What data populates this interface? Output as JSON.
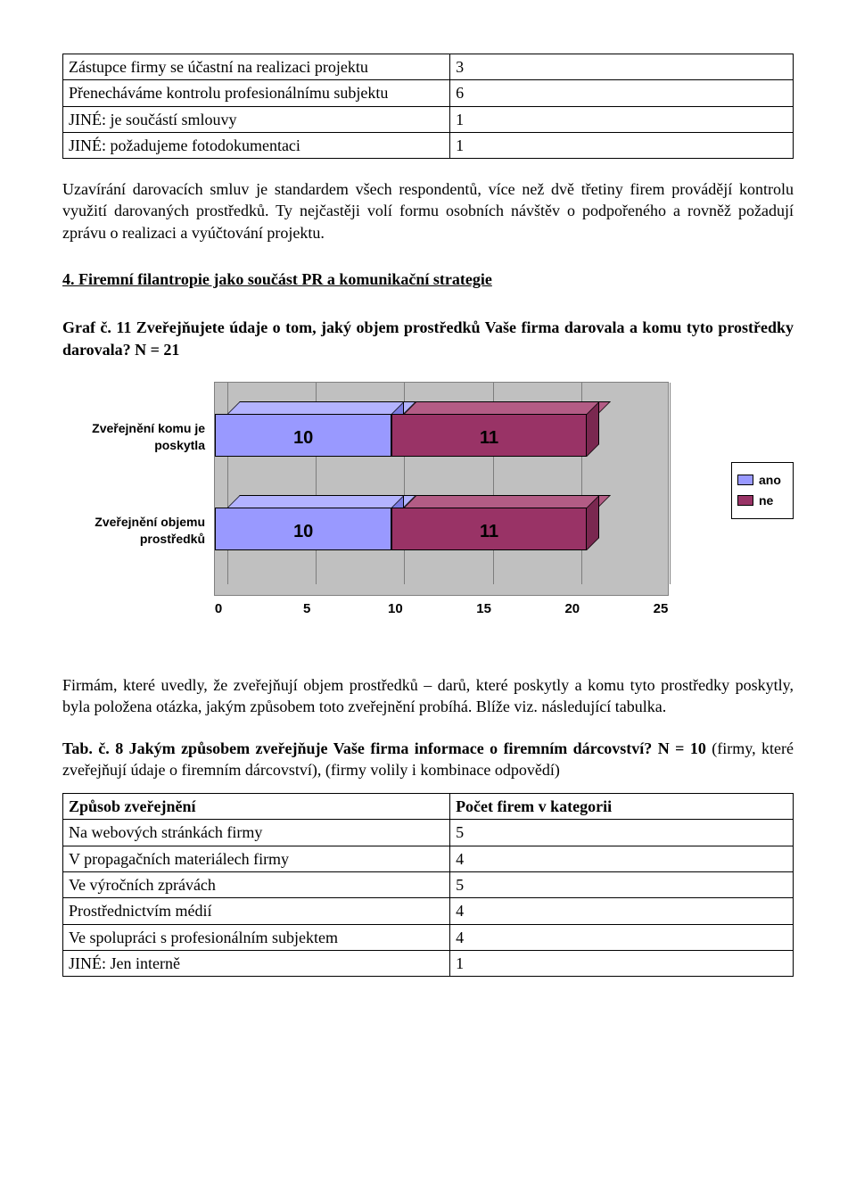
{
  "table1": {
    "rows": [
      {
        "label": "Zástupce firmy se účastní na realizaci projektu",
        "count": "3"
      },
      {
        "label": "Přenecháváme kontrolu profesionálnímu subjektu",
        "count": "6"
      },
      {
        "label": "JINÉ: je součástí smlouvy",
        "count": "1"
      },
      {
        "label": "JINÉ: požadujeme fotodokumentaci",
        "count": "1"
      }
    ]
  },
  "paragraph1": "Uzavírání darovacích smluv je standardem všech respondentů, více než dvě třetiny firem provádějí kontrolu využití darovaných prostředků. Ty nejčastěji volí formu osobních návštěv o podpořeného a rovněž požadují zprávu o realizaci a vyúčtování projektu.",
  "section_title": "4. Firemní filantropie jako součást PR a komunikační strategie",
  "graf_title": "Graf č. 11 Zveřejňujete údaje o tom, jaký objem prostředků Vaše firma darovala a komu tyto prostředky darovala? N = 21",
  "chart": {
    "type": "stacked-bar-horizontal",
    "background": "#c0c0c0",
    "grid_color": "#7d7d7d",
    "xlim": [
      0,
      25
    ],
    "xticks": [
      0,
      5,
      10,
      15,
      20,
      25
    ],
    "colors": {
      "ano": "#9999ff",
      "ne": "#993366"
    },
    "top_shade": {
      "ano": "#b3b3ff",
      "ne": "#b35c85"
    },
    "side_shade": {
      "ano": "#7a7ae0",
      "ne": "#7a2850"
    },
    "categories": [
      {
        "label": "Zveřejnění komu je poskytla",
        "ano": 10,
        "ne": 11
      },
      {
        "label": "Zveřejnění objemu prostředků",
        "ano": 10,
        "ne": 11
      }
    ],
    "legend": {
      "ano": "ano",
      "ne": "ne"
    },
    "label_fontsize": 14,
    "value_fontsize": 20,
    "tick_fontsize": 15
  },
  "paragraph2": "Firmám, které uvedly, že zveřejňují objem prostředků – darů, které poskytly a komu tyto prostředky poskytly, byla položena otázka, jakým způsobem toto zveřejnění probíhá. Blíže viz. následující tabulka.",
  "tab8_title_bold": "Tab. č. 8 Jakým způsobem zveřejňuje Vaše firma informace o firemním dárcovství? N = 10",
  "tab8_title_rest": " (firmy, které zveřejňují údaje o firemním dárcovství), (firmy volily i kombinace odpovědí)",
  "table2": {
    "header": {
      "left": "Způsob zveřejnění",
      "right": "Počet firem v kategorii"
    },
    "rows": [
      {
        "label": "Na webových stránkách firmy",
        "count": "5"
      },
      {
        "label": "V propagačních materiálech firmy",
        "count": "4"
      },
      {
        "label": "Ve výročních zprávách",
        "count": "5"
      },
      {
        "label": "Prostřednictvím médií",
        "count": "4"
      },
      {
        "label": "Ve spolupráci s profesionálním subjektem",
        "count": "4"
      },
      {
        "label": "JINÉ: Jen interně",
        "count": "1"
      }
    ]
  }
}
